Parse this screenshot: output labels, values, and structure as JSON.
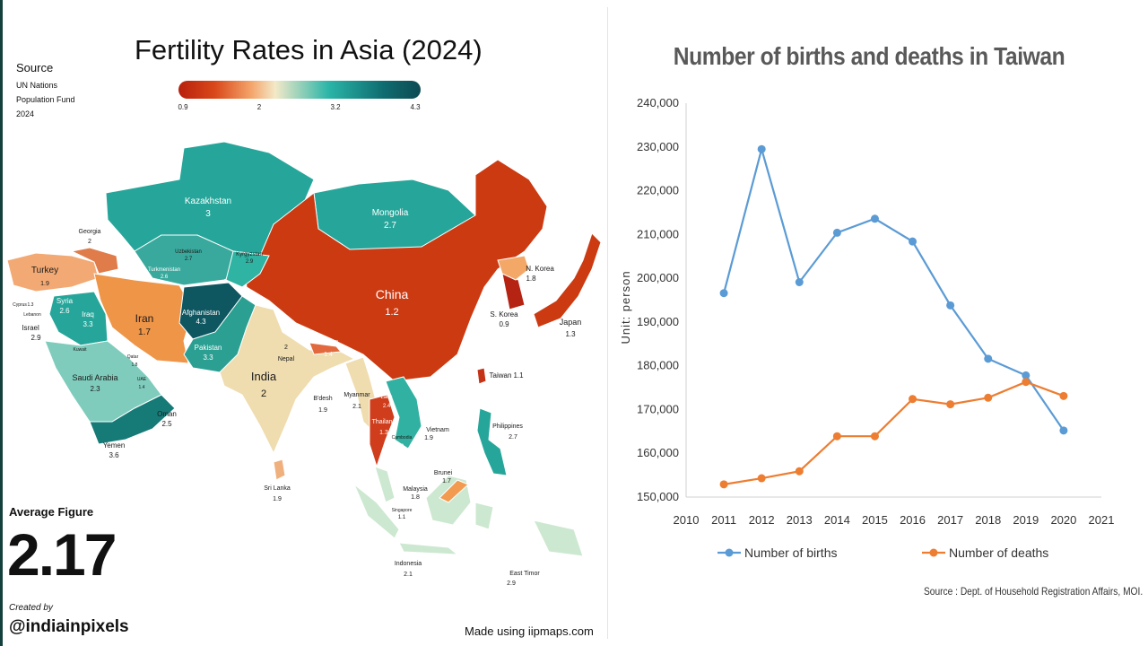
{
  "map": {
    "title": "Fertility Rates in Asia (2024)",
    "source_heading": "Source",
    "source_lines": [
      "UN Nations",
      "Population Fund",
      "2024"
    ],
    "scale_ticks": [
      "0.9",
      "2",
      "3.2",
      "4.3"
    ],
    "scale_colors": [
      "#b8200c",
      "#f4a46a",
      "#2bb5a8",
      "#0d4a53"
    ],
    "average_label": "Average Figure",
    "average_value": "2.17",
    "created_by": "Created by",
    "handle": "@indiainpixels",
    "made_using": "Made using iipmaps.com",
    "countries": [
      {
        "name": "Kazakhstan",
        "value": "3"
      },
      {
        "name": "Mongolia",
        "value": "2.7"
      },
      {
        "name": "Georgia",
        "value": "2"
      },
      {
        "name": "Armenia",
        "value": ""
      },
      {
        "name": "Aze",
        "value": ""
      },
      {
        "name": "Uzbekistan",
        "value": "2.7"
      },
      {
        "name": "Kyrgyzstan",
        "value": "2.9"
      },
      {
        "name": "Turkmenistan",
        "value": "2.6"
      },
      {
        "name": "Tajikistan",
        "value": ""
      },
      {
        "name": "Turkey",
        "value": "1.9"
      },
      {
        "name": "Cyprus",
        "value": "1.3"
      },
      {
        "name": "Lebanon",
        "value": "2"
      },
      {
        "name": "Syria",
        "value": "2.6"
      },
      {
        "name": "Iraq",
        "value": "3.3"
      },
      {
        "name": "Israel",
        "value": "2.9"
      },
      {
        "name": "Jordan",
        "value": ""
      },
      {
        "name": "Iran",
        "value": "1.7"
      },
      {
        "name": "Afghanistan",
        "value": "4.3"
      },
      {
        "name": "Pakistan",
        "value": "3.3"
      },
      {
        "name": "Kuwait",
        "value": "2"
      },
      {
        "name": "Qatar",
        "value": "1.8"
      },
      {
        "name": "UAE",
        "value": "1.4"
      },
      {
        "name": "Saudi Arabia",
        "value": "2.3"
      },
      {
        "name": "Oman",
        "value": "2.5"
      },
      {
        "name": "Yemen",
        "value": "3.6"
      },
      {
        "name": "China",
        "value": "1.2"
      },
      {
        "name": "N. Korea",
        "value": "1.8"
      },
      {
        "name": "S. Korea",
        "value": "0.9"
      },
      {
        "name": "Japan",
        "value": "1.3"
      },
      {
        "name": "Taiwan",
        "value": "1.1"
      },
      {
        "name": "Nepal",
        "value": "2"
      },
      {
        "name": "Bhutan",
        "value": "1.4"
      },
      {
        "name": "India",
        "value": "2"
      },
      {
        "name": "B'desh",
        "value": "1.9"
      },
      {
        "name": "Myanmar",
        "value": "2.1"
      },
      {
        "name": "Laos",
        "value": "2.4"
      },
      {
        "name": "Thailand",
        "value": "1.3"
      },
      {
        "name": "Cambodia",
        "value": "2.3"
      },
      {
        "name": "Vietnam",
        "value": "1.9"
      },
      {
        "name": "Philippines",
        "value": "2.7"
      },
      {
        "name": "Sri Lanka",
        "value": "1.9"
      },
      {
        "name": "Malaysia",
        "value": "1.8"
      },
      {
        "name": "Brunei",
        "value": "1.7"
      },
      {
        "name": "Singapore",
        "value": "1.1"
      },
      {
        "name": "Indonesia",
        "value": "2.1"
      },
      {
        "name": "East Timor",
        "value": "2.9"
      }
    ]
  },
  "chart_data": {
    "type": "line",
    "title": "Number of births and deaths in Taiwan",
    "xlabel": "",
    "ylabel": "Unit: person",
    "x": [
      2011,
      2012,
      2013,
      2014,
      2015,
      2016,
      2017,
      2018,
      2019,
      2020
    ],
    "x_ticks": [
      2010,
      2011,
      2012,
      2013,
      2014,
      2015,
      2016,
      2017,
      2018,
      2019,
      2020,
      2021
    ],
    "y_ticks": [
      "150,000",
      "160,000",
      "170,000",
      "180,000",
      "190,000",
      "200,000",
      "210,000",
      "220,000",
      "230,000",
      "240,000"
    ],
    "ylim": [
      150000,
      240000
    ],
    "xlim": [
      2010,
      2021
    ],
    "grid": false,
    "legend_position": "bottom",
    "series": [
      {
        "name": "Number of births",
        "color": "#5b9bd5",
        "values": [
          196600,
          229500,
          199100,
          210400,
          213600,
          208400,
          193800,
          181600,
          177800,
          165200
        ]
      },
      {
        "name": "Number of deaths",
        "color": "#ed7d31",
        "values": [
          152900,
          154300,
          155900,
          163900,
          163900,
          172400,
          171200,
          172700,
          176300,
          173100
        ]
      }
    ],
    "source_note": "Source : Dept. of Household Registration Affairs, MOI."
  }
}
